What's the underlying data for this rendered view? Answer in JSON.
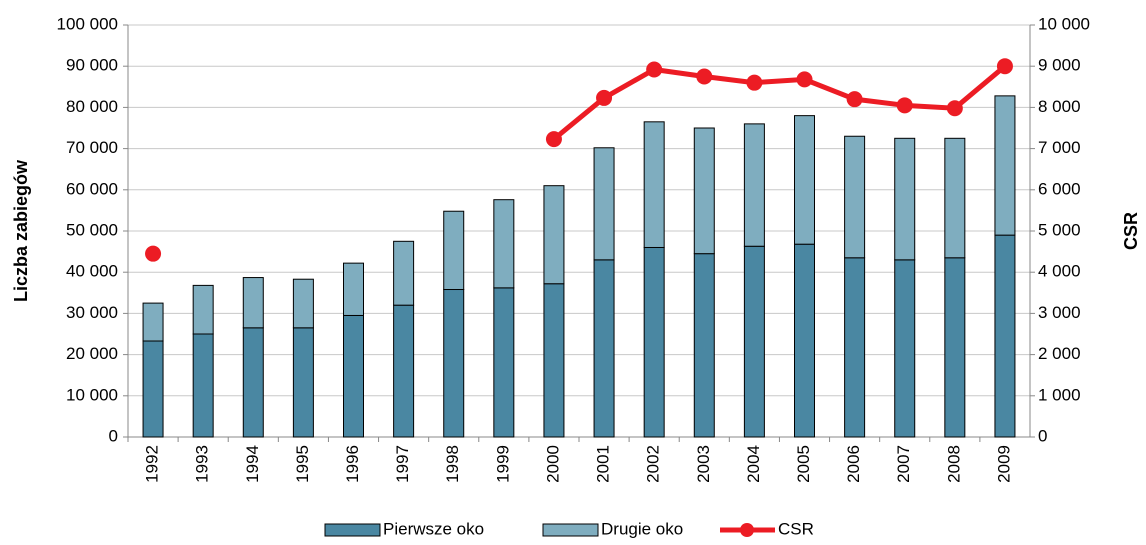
{
  "chart_data": {
    "type": "bar",
    "categories": [
      "1992",
      "1993",
      "1994",
      "1995",
      "1996",
      "1997",
      "1998",
      "1999",
      "2000",
      "2001",
      "2002",
      "2003",
      "2004",
      "2005",
      "2006",
      "2007",
      "2008",
      "2009"
    ],
    "ylabel": "Liczba zabiegów",
    "y2label": "CSR",
    "stacked": true,
    "series": [
      {
        "name": "Pierwsze oko",
        "color": "#4a87a2",
        "values": [
          23300,
          25000,
          26500,
          26500,
          29500,
          32000,
          35800,
          36200,
          37200,
          43000,
          46000,
          44500,
          46300,
          46800,
          43500,
          43000,
          43500,
          49000
        ]
      },
      {
        "name": "Drugie oko",
        "color": "#7fadbf",
        "values": [
          9200,
          11800,
          12200,
          11800,
          12700,
          15500,
          19000,
          21400,
          23800,
          27200,
          30500,
          30500,
          29700,
          31200,
          29500,
          29500,
          29000,
          33800
        ]
      },
      {
        "name": "CSR",
        "type": "line",
        "axis": "y2",
        "color": "#ec1c24",
        "values": [
          4450,
          null,
          null,
          null,
          null,
          null,
          null,
          null,
          7230,
          8230,
          8920,
          8750,
          8600,
          8680,
          8200,
          8050,
          7980,
          9000
        ]
      }
    ],
    "ylim": [
      0,
      100000
    ],
    "yticks": [
      0,
      {
        "value": 10000,
        "label": "10 000"
      },
      {
        "value": 20000,
        "label": "20 000"
      },
      {
        "value": 30000,
        "label": "30 000"
      },
      {
        "value": 40000,
        "label": "40 000"
      },
      {
        "value": 50000,
        "label": "50 000"
      },
      {
        "value": 60000,
        "label": "60 000"
      },
      {
        "value": 70000,
        "label": "70 000"
      },
      {
        "value": 80000,
        "label": "80 000"
      },
      {
        "value": 90000,
        "label": "90 000"
      },
      {
        "value": 100000,
        "label": "100 000"
      }
    ],
    "y2lim": [
      0,
      10000
    ],
    "y2ticks": [
      0,
      {
        "value": 1000,
        "label": "1 000"
      },
      {
        "value": 2000,
        "label": "2 000"
      },
      {
        "value": 3000,
        "label": "3 000"
      },
      {
        "value": 4000,
        "label": "4 000"
      },
      {
        "value": 5000,
        "label": "5 000"
      },
      {
        "value": 6000,
        "label": "6 000"
      },
      {
        "value": 7000,
        "label": "7 000"
      },
      {
        "value": 8000,
        "label": "8 000"
      },
      {
        "value": 9000,
        "label": "9 000"
      },
      {
        "value": 10000,
        "label": "10 000"
      }
    ],
    "grid": true,
    "legend": "bottom"
  }
}
